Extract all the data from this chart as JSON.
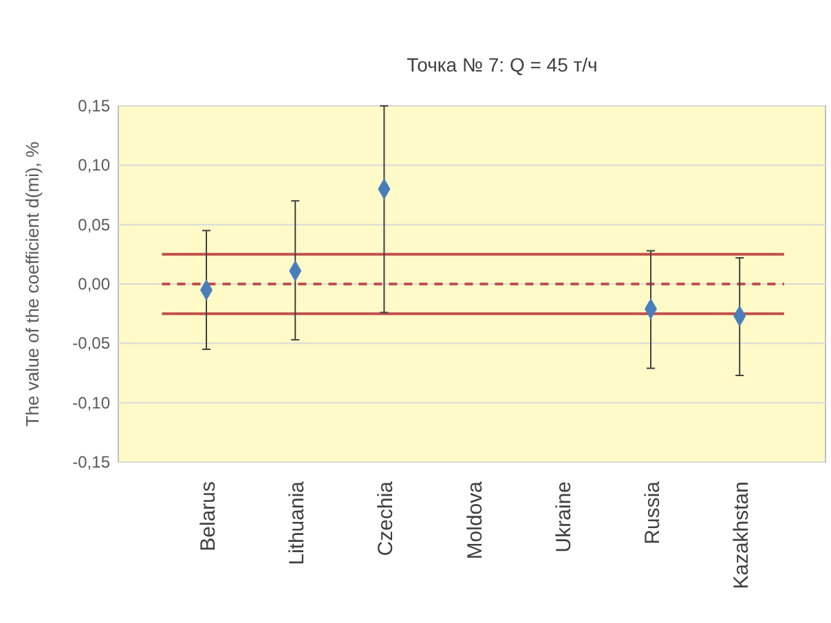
{
  "chart_data": {
    "type": "scatter",
    "title": "Точка № 7: Q = 45 т/ч",
    "ylabel": "The value of the coefficient d(mi), %",
    "categories": [
      "Belarus",
      "Lithuania",
      "Czechia",
      "Moldova",
      "Ukraine",
      "Russia",
      "Kazakhstan"
    ],
    "series": [
      {
        "color": "#4a7ebb",
        "values": [
          -0.005,
          0.011,
          0.08,
          null,
          null,
          -0.021,
          -0.027
        ],
        "errors": [
          [
            -0.055,
            0.045
          ],
          [
            -0.047,
            0.07
          ],
          [
            -0.024,
            0.15
          ],
          null,
          null,
          [
            -0.071,
            0.028
          ],
          [
            -0.077,
            0.022
          ]
        ]
      }
    ],
    "marker": "diamond",
    "ylim": [
      -0.15,
      0.15
    ],
    "yticks": [
      {
        "value": -0.15,
        "label": "-0,15"
      },
      {
        "value": -0.1,
        "label": "-0,10"
      },
      {
        "value": -0.05,
        "label": "-0,05"
      },
      {
        "value": 0,
        "label": "0,00"
      },
      {
        "value": 0.05,
        "label": "0,05"
      },
      {
        "value": 0.1,
        "label": "0,10"
      },
      {
        "value": 0.15,
        "label": "0,15"
      }
    ],
    "grid": "y",
    "ref_lines": [
      {
        "axis": "y",
        "value": 0.025,
        "color": "#c0504d",
        "line_style": "solid"
      },
      {
        "axis": "y",
        "value": 0,
        "color": "#c0504d",
        "line_style": "dashed"
      },
      {
        "axis": "y",
        "value": -0.025,
        "color": "#c0504d",
        "line_style": "solid"
      }
    ]
  }
}
